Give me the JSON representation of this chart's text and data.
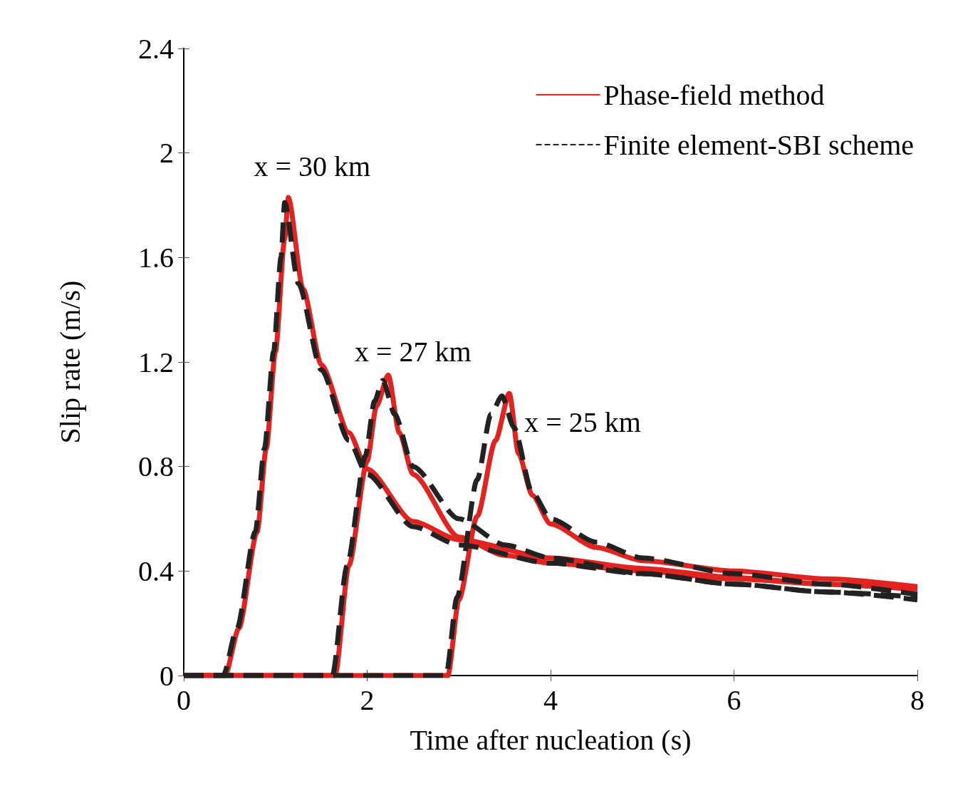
{
  "chart_data": {
    "type": "line",
    "xlabel": "Time after nucleation (s)",
    "ylabel": "Slip rate (m/s)",
    "xlim": [
      0,
      8
    ],
    "xticks": [
      0,
      2,
      4,
      6,
      8
    ],
    "ylim": [
      0,
      2.4
    ],
    "yticks": [
      0,
      0.4,
      0.8,
      1.2,
      1.6,
      2,
      2.4
    ],
    "legend": "top right",
    "series": [
      {
        "name": "Phase-field method",
        "color": "#e3231f",
        "line_style": "solid",
        "x": [
          0,
          0.45,
          0.6,
          0.8,
          0.9,
          1.0,
          1.1,
          1.14,
          1.3,
          1.5,
          1.8,
          2,
          2.5,
          3,
          4,
          5,
          6,
          7,
          8
        ],
        "values": [
          0,
          0,
          0.18,
          0.55,
          0.87,
          1.24,
          1.67,
          1.83,
          1.48,
          1.19,
          0.93,
          0.79,
          0.59,
          0.52,
          0.45,
          0.41,
          0.375,
          0.35,
          0.33
        ]
      },
      {
        "name": "Finite element-SBI scheme",
        "color": "#222222",
        "line_style": "dashed",
        "x": [
          0,
          0.43,
          0.58,
          0.78,
          0.88,
          0.98,
          1.06,
          1.1,
          1.25,
          1.5,
          1.8,
          2,
          2.5,
          3,
          4,
          5,
          6,
          7,
          8
        ],
        "values": [
          0,
          0,
          0.18,
          0.55,
          0.87,
          1.24,
          1.6,
          1.81,
          1.5,
          1.17,
          0.9,
          0.77,
          0.57,
          0.5,
          0.43,
          0.39,
          0.35,
          0.32,
          0.29
        ]
      },
      {
        "color": "#e3231f",
        "line_style": "solid",
        "x": [
          0,
          1.65,
          1.8,
          2,
          2.1,
          2.23,
          2.35,
          2.5,
          3,
          3.5,
          4,
          5,
          6,
          7,
          8
        ],
        "values": [
          0,
          0,
          0.42,
          0.82,
          1.03,
          1.15,
          0.93,
          0.77,
          0.53,
          0.46,
          0.43,
          0.4,
          0.37,
          0.35,
          0.33
        ]
      },
      {
        "color": "#222222",
        "line_style": "dashed",
        "x": [
          0,
          1.62,
          1.78,
          1.98,
          2.08,
          2.17,
          2.3,
          2.5,
          3,
          3.5,
          4,
          5,
          6,
          7,
          8
        ],
        "values": [
          0,
          0,
          0.42,
          0.84,
          1.05,
          1.13,
          1.0,
          0.8,
          0.6,
          0.5,
          0.45,
          0.39,
          0.35,
          0.32,
          0.3
        ]
      },
      {
        "color": "#e3231f",
        "line_style": "solid",
        "x": [
          0,
          2.88,
          3,
          3.2,
          3.4,
          3.55,
          3.65,
          3.8,
          4,
          4.5,
          5,
          6,
          7,
          8
        ],
        "values": [
          0,
          0,
          0.29,
          0.61,
          0.9,
          1.08,
          0.85,
          0.69,
          0.58,
          0.49,
          0.44,
          0.4,
          0.37,
          0.34
        ]
      },
      {
        "color": "#222222",
        "line_style": "dashed",
        "x": [
          0,
          2.86,
          2.98,
          3.2,
          3.35,
          3.47,
          3.6,
          3.8,
          4,
          4.5,
          5,
          6,
          7,
          8
        ],
        "values": [
          0,
          0,
          0.3,
          0.75,
          1.0,
          1.07,
          0.95,
          0.7,
          0.6,
          0.51,
          0.45,
          0.39,
          0.35,
          0.31
        ]
      }
    ],
    "annotations": [
      "x = 30 km",
      "x = 27 km",
      "x = 25 km"
    ]
  }
}
